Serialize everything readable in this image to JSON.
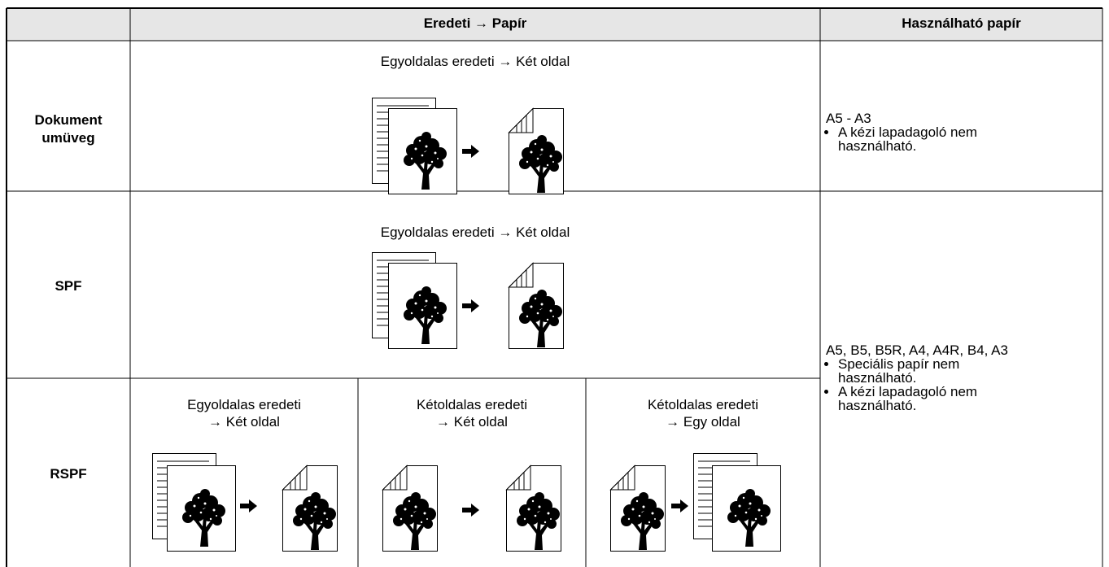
{
  "header": {
    "col1": "Eredeti → Papír",
    "col2": "Használható papír"
  },
  "rows": [
    {
      "label": "Dokumentumüveg",
      "captions": [
        [
          "Egyoldalas eredeti → Két oldal"
        ]
      ]
    },
    {
      "label": "SPF",
      "captions": [
        [
          "Egyoldalas eredeti → Két oldal"
        ]
      ]
    },
    {
      "label": "RSPF",
      "captions": [
        [
          "Egyoldalas eredeti",
          "→ Két oldal"
        ],
        [
          "Kétoldalas eredeti",
          "→ Két oldal"
        ],
        [
          "Kétoldalas eredeti",
          "→ Egy oldal"
        ]
      ]
    }
  ],
  "paper": [
    {
      "sizes": "A5 - A3",
      "notes": [
        "A kézi lapadagoló nem használható."
      ]
    },
    {
      "sizes": "A5, B5, B5R, A4, A4R, B4, A3",
      "notes": [
        "Speciális papír nem használható.",
        "A kézi lapadagoló nem használható."
      ]
    }
  ]
}
